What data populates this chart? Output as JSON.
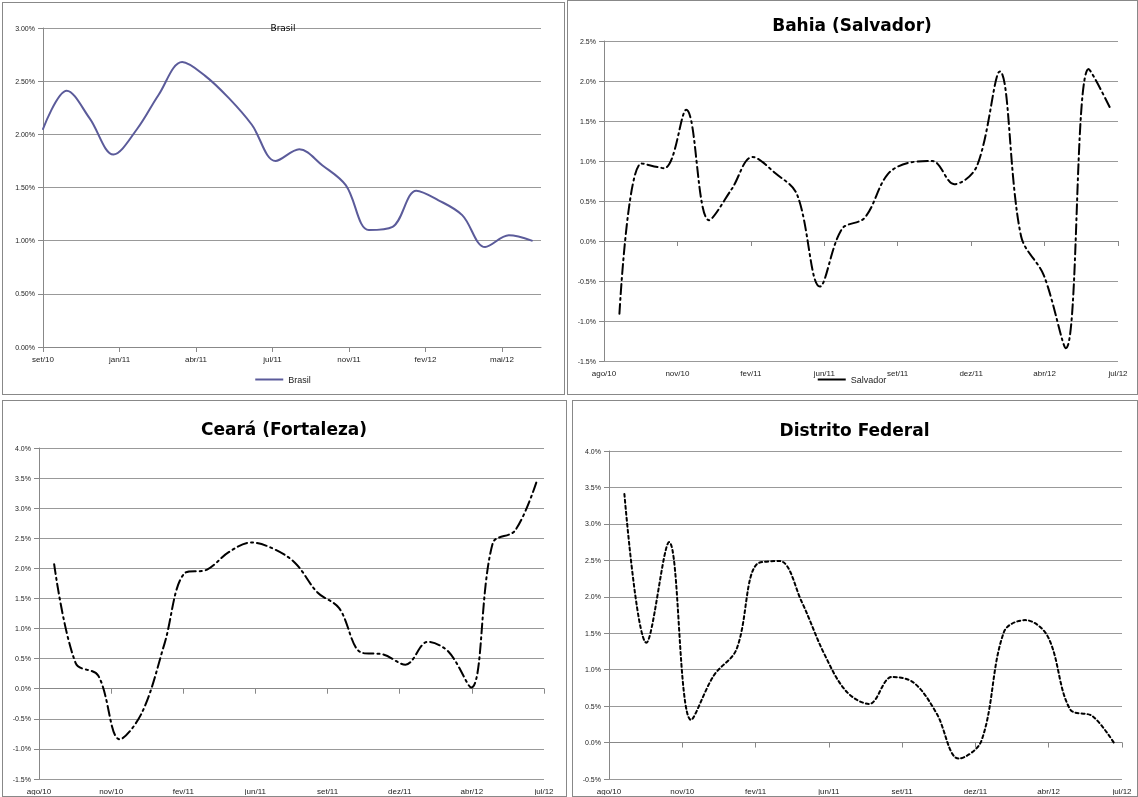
{
  "chart_data": [
    {
      "type": "line",
      "title": "Brasil",
      "x": [
        "2010-09-30",
        "2010-10-31",
        "2010-11-30",
        "2010-12-31",
        "2011-01-31",
        "2011-02-28",
        "2011-03-31",
        "2011-04-30",
        "2011-05-31",
        "2011-06-30",
        "2011-07-31",
        "2011-08-31",
        "2011-09-30",
        "2011-10-31",
        "2011-11-30",
        "2011-12-31",
        "2012-01-31",
        "2012-02-29",
        "2012-03-31",
        "2012-04-30",
        "2012-05-31",
        "2012-06-30"
      ],
      "series": [
        {
          "name": "Brasil",
          "color": "#5b5b9a",
          "values": [
            2.05,
            2.41,
            2.15,
            1.81,
            2.05,
            2.37,
            2.68,
            2.55,
            2.34,
            2.09,
            1.75,
            1.86,
            1.71,
            1.52,
            1.1,
            1.13,
            1.47,
            1.38,
            1.24,
            0.94,
            1.05,
            1.0
          ]
        }
      ],
      "xlim": [
        "2010-09-30",
        "2012-07-12"
      ],
      "xticks": [
        {
          "value": "2010-09-30",
          "label": "set/10"
        },
        {
          "value": "2011-01-08",
          "label": "jan/11"
        },
        {
          "value": "2011-04-18",
          "label": "abr/11"
        },
        {
          "value": "2011-07-27",
          "label": "jul/11"
        },
        {
          "value": "2011-11-04",
          "label": "nov/11"
        },
        {
          "value": "2012-02-12",
          "label": "fev/12"
        },
        {
          "value": "2012-05-22",
          "label": "mai/12"
        }
      ],
      "ylim": [
        0,
        3
      ],
      "yticks": [
        {
          "value": 0,
          "label": "0.00%"
        },
        {
          "value": 0.5,
          "label": "0.50%"
        },
        {
          "value": 1,
          "label": "1.00%"
        },
        {
          "value": 1.5,
          "label": "1.50%"
        },
        {
          "value": 2,
          "label": "2.00%"
        },
        {
          "value": 2.5,
          "label": "2.50%"
        },
        {
          "value": 3,
          "label": "3.00%"
        }
      ],
      "grid": "y",
      "legend": "bottom",
      "line_style": "solid"
    },
    {
      "type": "line",
      "title": "Bahia (Salvador)",
      "x": [
        "2010-09-01",
        "2010-10-01",
        "2010-11-01",
        "2010-12-01",
        "2011-01-01",
        "2011-02-01",
        "2011-03-01",
        "2011-04-01",
        "2011-05-01",
        "2011-06-01",
        "2011-07-01",
        "2011-08-01",
        "2011-09-01",
        "2011-10-01",
        "2011-11-01",
        "2011-12-01",
        "2012-01-01",
        "2012-02-01",
        "2012-03-01",
        "2012-04-01",
        "2012-05-01",
        "2012-06-01",
        "2012-07-01"
      ],
      "series": [
        {
          "name": "Salvador",
          "color": "#000000",
          "values": [
            -0.91,
            0.97,
            0.91,
            1.64,
            0.26,
            0.65,
            1.05,
            0.85,
            0.58,
            -0.57,
            0.15,
            0.29,
            0.83,
            0.98,
            1.0,
            0.71,
            0.94,
            2.12,
            0.06,
            -0.43,
            -1.34,
            2.15,
            1.65
          ]
        }
      ],
      "xlim": [
        "2010-08-11",
        "2012-07-11"
      ],
      "xticks": [
        {
          "value": "2010-08-11",
          "label": "ago/10"
        },
        {
          "value": "2010-11-19",
          "label": "nov/10"
        },
        {
          "value": "2011-02-27",
          "label": "fev/11"
        },
        {
          "value": "2011-06-07",
          "label": "jun/11"
        },
        {
          "value": "2011-09-15",
          "label": "set/11"
        },
        {
          "value": "2011-12-24",
          "label": "dez/11"
        },
        {
          "value": "2012-04-02",
          "label": "abr/12"
        },
        {
          "value": "2012-07-11",
          "label": "jul/12"
        }
      ],
      "ylim": [
        -1.5,
        2.5
      ],
      "yticks": [
        {
          "value": -1.5,
          "label": "-1.5%"
        },
        {
          "value": -1,
          "label": "-1.0%"
        },
        {
          "value": -0.5,
          "label": "-0.5%"
        },
        {
          "value": 0,
          "label": "0.0%"
        },
        {
          "value": 0.5,
          "label": "0.5%"
        },
        {
          "value": 1,
          "label": "1.0%"
        },
        {
          "value": 1.5,
          "label": "1.5%"
        },
        {
          "value": 2,
          "label": "2.0%"
        },
        {
          "value": 2.5,
          "label": "2.5%"
        }
      ],
      "grid": "y",
      "legend": "bottom",
      "line_style": "dashed"
    },
    {
      "type": "line",
      "title": "Ceará (Fortaleza)",
      "x": [
        "2010-09-01",
        "2010-10-01",
        "2010-11-01",
        "2010-12-01",
        "2011-01-01",
        "2011-02-01",
        "2011-03-01",
        "2011-04-01",
        "2011-05-01",
        "2011-06-01",
        "2011-07-01",
        "2011-08-01",
        "2011-09-01",
        "2011-10-01",
        "2011-11-01",
        "2011-12-01",
        "2012-01-01",
        "2012-02-01",
        "2012-03-01",
        "2012-04-01",
        "2012-05-01",
        "2012-06-01",
        "2012-07-01"
      ],
      "series": [
        {
          "color": "#000000",
          "values": [
            2.07,
            0.42,
            0.22,
            -0.84,
            -0.39,
            0.75,
            1.92,
            1.98,
            2.27,
            2.43,
            2.33,
            2.09,
            1.6,
            1.34,
            0.6,
            0.57,
            0.4,
            0.78,
            0.61,
            0.02,
            2.42,
            2.63,
            3.45
          ]
        }
      ],
      "xlim": [
        "2010-08-11",
        "2012-07-11"
      ],
      "xticks": [
        {
          "value": "2010-08-11",
          "label": "ago/10"
        },
        {
          "value": "2010-11-19",
          "label": "nov/10"
        },
        {
          "value": "2011-02-27",
          "label": "fev/11"
        },
        {
          "value": "2011-06-07",
          "label": "jun/11"
        },
        {
          "value": "2011-09-15",
          "label": "set/11"
        },
        {
          "value": "2011-12-24",
          "label": "dez/11"
        },
        {
          "value": "2012-04-02",
          "label": "abr/12"
        },
        {
          "value": "2012-07-11",
          "label": "jul/12"
        }
      ],
      "ylim": [
        -1.5,
        4
      ],
      "yticks": [
        {
          "value": -1.5,
          "label": "-1.5%"
        },
        {
          "value": -1,
          "label": "-1.0%"
        },
        {
          "value": -0.5,
          "label": "-0.5%"
        },
        {
          "value": 0,
          "label": "0.0%"
        },
        {
          "value": 0.5,
          "label": "0.5%"
        },
        {
          "value": 1,
          "label": "1.0%"
        },
        {
          "value": 1.5,
          "label": "1.5%"
        },
        {
          "value": 2,
          "label": "2.0%"
        },
        {
          "value": 2.5,
          "label": "2.5%"
        },
        {
          "value": 3,
          "label": "3.0%"
        },
        {
          "value": 3.5,
          "label": "3.5%"
        },
        {
          "value": 4,
          "label": "4.0%"
        }
      ],
      "grid": "y",
      "line_style": "dashed"
    },
    {
      "type": "line",
      "title": "Distrito Federal",
      "x": [
        "2010-09-01",
        "2010-10-01",
        "2010-11-01",
        "2010-12-01",
        "2011-01-01",
        "2011-02-01",
        "2011-03-01",
        "2011-04-01",
        "2011-05-01",
        "2011-06-01",
        "2011-07-01",
        "2011-08-01",
        "2011-09-01",
        "2011-10-01",
        "2011-11-01",
        "2011-12-01",
        "2012-01-01",
        "2012-02-01",
        "2012-03-01",
        "2012-04-01",
        "2012-05-01",
        "2012-06-01",
        "2012-07-01"
      ],
      "series": [
        {
          "color": "#000000",
          "values": [
            3.41,
            1.37,
            2.75,
            0.31,
            0.92,
            1.28,
            2.45,
            2.49,
            1.93,
            1.21,
            0.7,
            0.53,
            0.9,
            0.82,
            0.4,
            -0.22,
            0.02,
            1.52,
            1.68,
            1.45,
            0.46,
            0.36,
            -0.02
          ]
        }
      ],
      "xlim": [
        "2010-08-11",
        "2012-07-11"
      ],
      "xticks": [
        {
          "value": "2010-08-11",
          "label": "ago/10"
        },
        {
          "value": "2010-11-19",
          "label": "nov/10"
        },
        {
          "value": "2011-02-27",
          "label": "fev/11"
        },
        {
          "value": "2011-06-07",
          "label": "jun/11"
        },
        {
          "value": "2011-09-15",
          "label": "set/11"
        },
        {
          "value": "2011-12-24",
          "label": "dez/11"
        },
        {
          "value": "2012-04-02",
          "label": "abr/12"
        },
        {
          "value": "2012-07-11",
          "label": "jul/12"
        }
      ],
      "ylim": [
        -0.5,
        4
      ],
      "yticks": [
        {
          "value": -0.5,
          "label": "-0.5%"
        },
        {
          "value": 0,
          "label": "0.0%"
        },
        {
          "value": 0.5,
          "label": "0.5%"
        },
        {
          "value": 1,
          "label": "1.0%"
        },
        {
          "value": 1.5,
          "label": "1.5%"
        },
        {
          "value": 2,
          "label": "2.0%"
        },
        {
          "value": 2.5,
          "label": "2.5%"
        },
        {
          "value": 3,
          "label": "3.0%"
        },
        {
          "value": 3.5,
          "label": "3.5%"
        },
        {
          "value": 4,
          "label": "4.0%"
        }
      ],
      "grid": "y",
      "line_style": "dotted"
    }
  ]
}
